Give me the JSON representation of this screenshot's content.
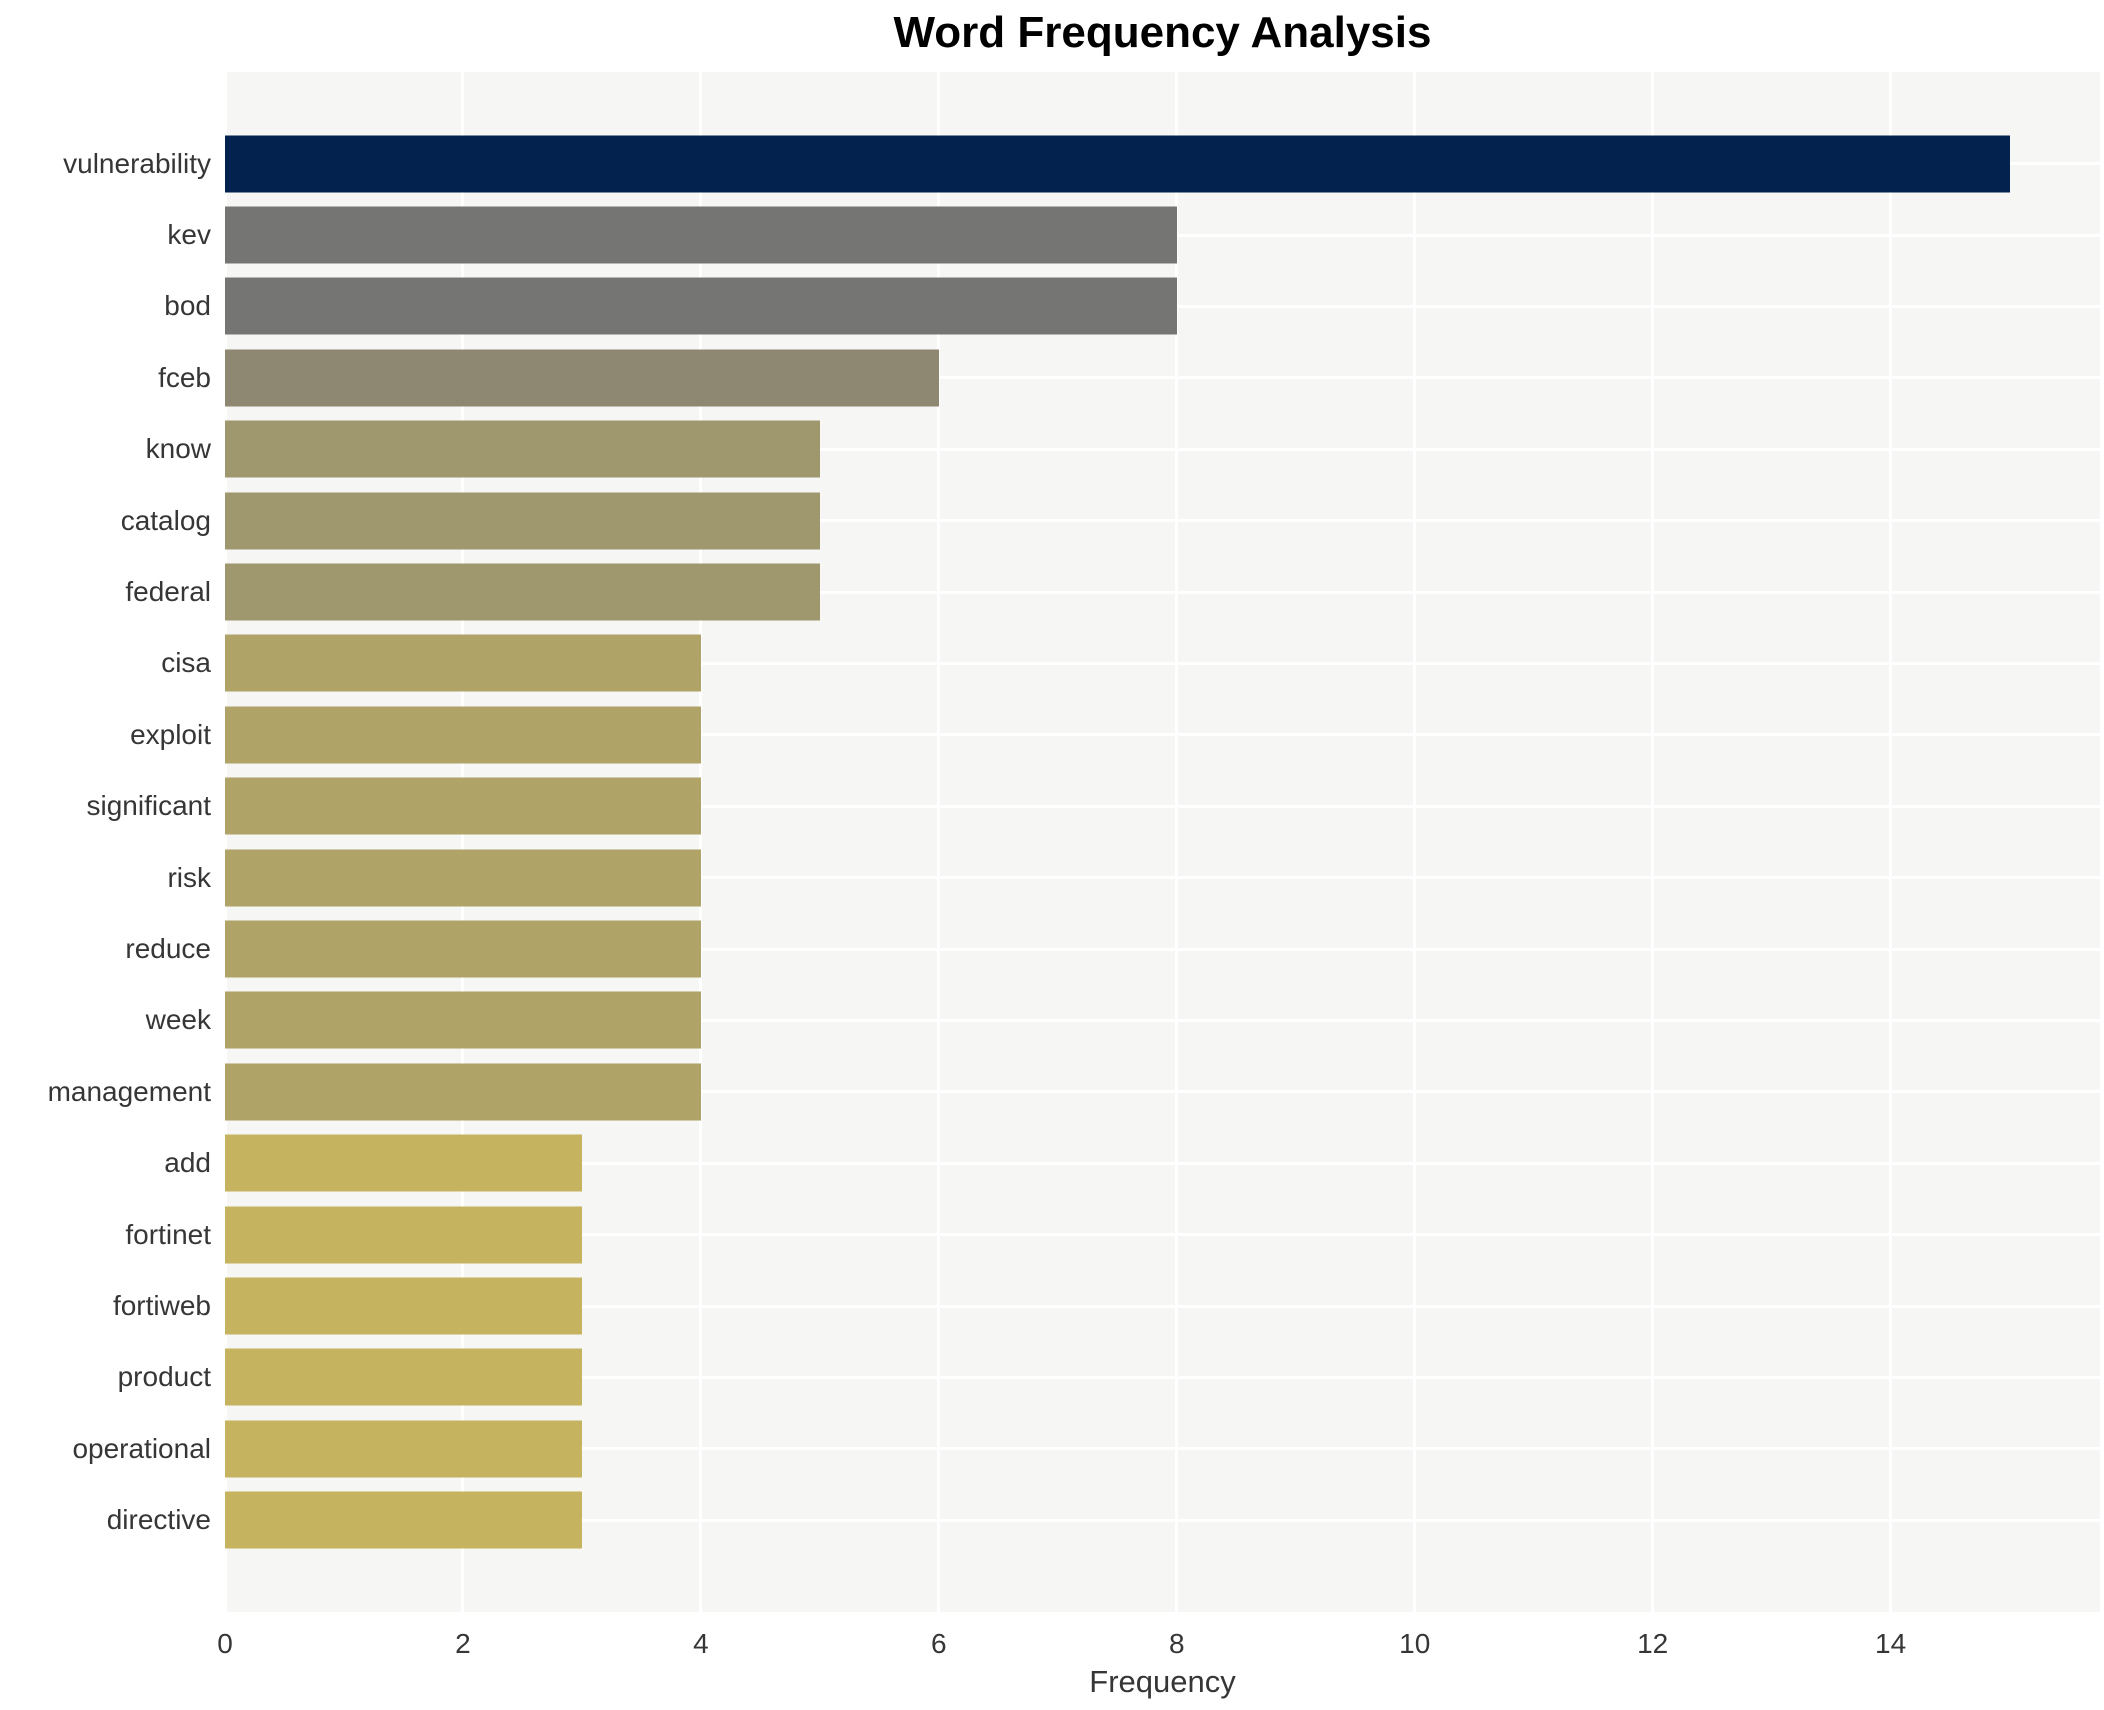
{
  "chart_data": {
    "type": "bar",
    "orientation": "horizontal",
    "title": "Word Frequency Analysis",
    "xlabel": "Frequency",
    "ylabel": "",
    "xlim": [
      0,
      15.76
    ],
    "xticks": [
      0,
      2,
      4,
      6,
      8,
      10,
      12,
      14
    ],
    "grid": true,
    "legend": "none",
    "plot_bg_color": "#f6f6f4",
    "grid_color": "#ffffff",
    "categories": [
      "vulnerability",
      "kev",
      "bod",
      "fceb",
      "know",
      "catalog",
      "federal",
      "cisa",
      "exploit",
      "significant",
      "risk",
      "reduce",
      "week",
      "management",
      "add",
      "fortinet",
      "fortiweb",
      "product",
      "operational",
      "directive"
    ],
    "values": [
      15,
      8,
      8,
      6,
      5,
      5,
      5,
      4,
      4,
      4,
      4,
      4,
      4,
      4,
      3,
      3,
      3,
      3,
      3,
      3
    ],
    "colors": [
      "#03234e",
      "#757574",
      "#757574",
      "#8e8772",
      "#9f976e",
      "#9f976e",
      "#9f976e",
      "#afa368",
      "#afa368",
      "#afa368",
      "#afa368",
      "#afa368",
      "#afa368",
      "#afa368",
      "#c5b35f",
      "#c5b35f",
      "#c5b35f",
      "#c5b35f",
      "#c5b35f",
      "#c5b35f"
    ]
  }
}
